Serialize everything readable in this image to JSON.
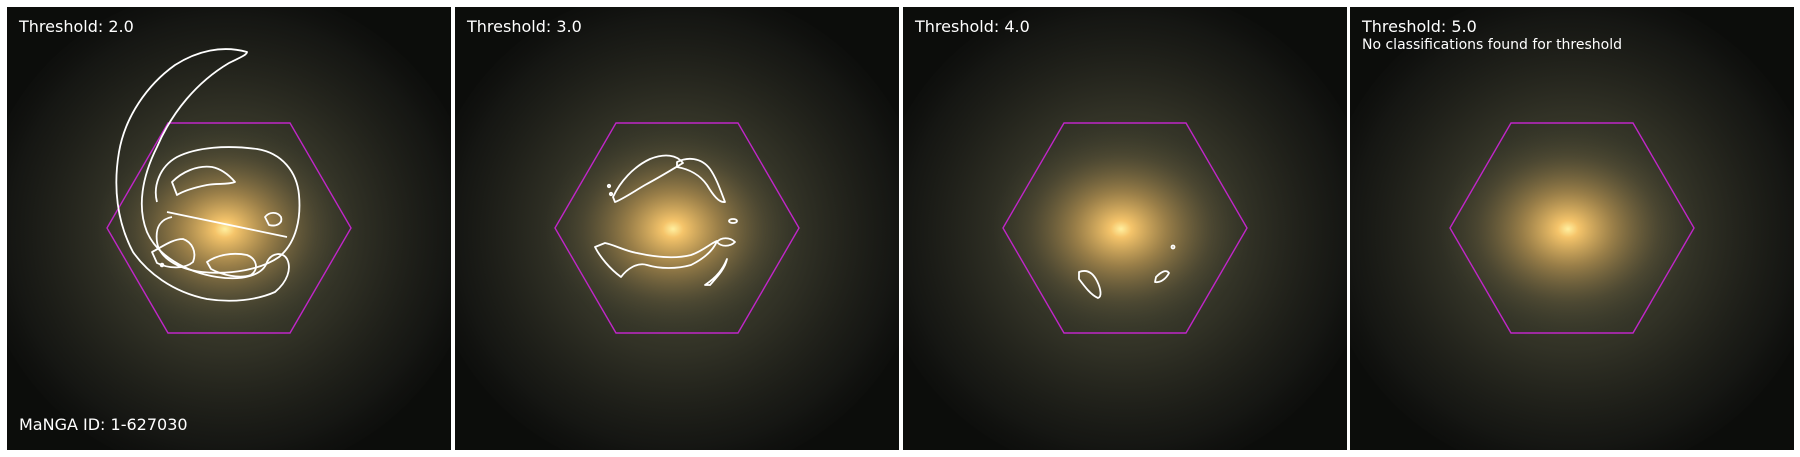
{
  "figure": {
    "manga_id_label": "MaNGA ID: 1-627030",
    "hexagon_color": "#c026c8",
    "contour_color": "#ffffff",
    "galaxy_core_color": "#f5c46a",
    "panels": [
      {
        "threshold_label": "Threshold: 2.0",
        "note": ""
      },
      {
        "threshold_label": "Threshold: 3.0",
        "note": ""
      },
      {
        "threshold_label": "Threshold: 4.0",
        "note": ""
      },
      {
        "threshold_label": "Threshold: 5.0",
        "note": "No classifications found for threshold"
      }
    ]
  }
}
